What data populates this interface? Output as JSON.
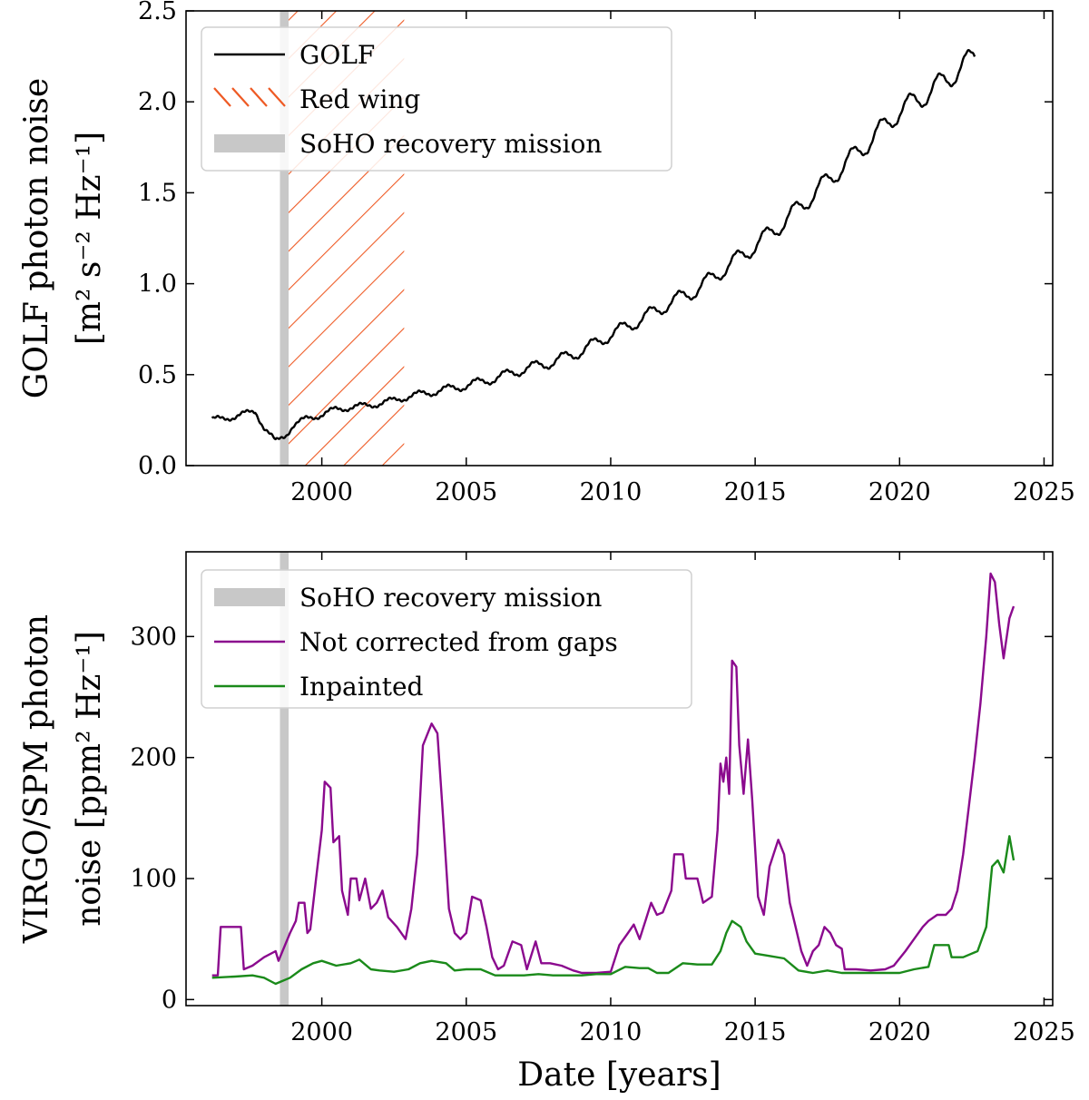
{
  "chart_data": [
    {
      "type": "line",
      "panel": "top",
      "title": "",
      "xlabel": "",
      "ylabel_line1": "GOLF photon noise",
      "ylabel_line2": "[m² s⁻² Hz⁻¹]",
      "xlim": [
        1995.3,
        2025.3
      ],
      "ylim": [
        0,
        2.5
      ],
      "xticks": [
        2000,
        2005,
        2010,
        2015,
        2020,
        2025
      ],
      "xtick_labels": [
        "2000",
        "2005",
        "2010",
        "2015",
        "2020",
        "2025"
      ],
      "yticks": [
        0,
        0.5,
        1.0,
        1.5,
        2.0,
        2.5
      ],
      "ytick_labels": [
        "0.0",
        "0.5",
        "1.0",
        "1.5",
        "2.0",
        "2.5"
      ],
      "shaded_regions": [
        {
          "name": "SoHO recovery mission",
          "x_start": 1998.55,
          "x_end": 1998.85,
          "color": "#c8c8c8",
          "style": "solid"
        },
        {
          "name": "Red wing",
          "x_start": 1998.85,
          "x_end": 2002.85,
          "color": "#ee5a24",
          "style": "hatch"
        }
      ],
      "series": [
        {
          "name": "GOLF",
          "color": "#000000",
          "trend_points": [
            [
              1996.2,
              0.25
            ],
            [
              1997.0,
              0.27
            ],
            [
              1997.7,
              0.3
            ],
            [
              1998.0,
              0.21
            ],
            [
              1998.4,
              0.13
            ],
            [
              1998.75,
              0.17
            ],
            [
              1999.0,
              0.22
            ],
            [
              1999.5,
              0.26
            ],
            [
              2000.0,
              0.28
            ],
            [
              2000.5,
              0.31
            ],
            [
              2001.0,
              0.32
            ],
            [
              2001.5,
              0.33
            ],
            [
              2002.0,
              0.34
            ],
            [
              2002.5,
              0.36
            ],
            [
              2003.0,
              0.38
            ],
            [
              2004.0,
              0.41
            ],
            [
              2005.0,
              0.44
            ],
            [
              2006.0,
              0.48
            ],
            [
              2007.0,
              0.53
            ],
            [
              2008.0,
              0.57
            ],
            [
              2009.0,
              0.63
            ],
            [
              2010.0,
              0.72
            ],
            [
              2011.0,
              0.8
            ],
            [
              2012.0,
              0.89
            ],
            [
              2013.0,
              0.97
            ],
            [
              2014.0,
              1.09
            ],
            [
              2015.0,
              1.21
            ],
            [
              2016.0,
              1.34
            ],
            [
              2017.0,
              1.49
            ],
            [
              2018.0,
              1.64
            ],
            [
              2019.0,
              1.79
            ],
            [
              2020.0,
              1.95
            ],
            [
              2021.0,
              2.05
            ],
            [
              2022.0,
              2.17
            ],
            [
              2022.6,
              2.25
            ]
          ],
          "seasonal_amplitude": 0.06,
          "x_end": 2022.6
        }
      ],
      "legend": {
        "location": "top-left",
        "entries": [
          {
            "label": "GOLF",
            "kind": "line",
            "color": "#000000"
          },
          {
            "label": "Red wing",
            "kind": "hatch",
            "color": "#ee5a24"
          },
          {
            "label": "SoHO recovery mission",
            "kind": "band",
            "color": "#c8c8c8"
          }
        ]
      }
    },
    {
      "type": "line",
      "panel": "bottom",
      "title": "",
      "xlabel": "Date [years]",
      "ylabel_line1": "VIRGO/SPM photon",
      "ylabel_line2": "noise [ppm² Hz⁻¹]",
      "xlim": [
        1995.3,
        2025.3
      ],
      "ylim": [
        -5,
        370
      ],
      "xticks": [
        2000,
        2005,
        2010,
        2015,
        2020,
        2025
      ],
      "xtick_labels": [
        "2000",
        "2005",
        "2010",
        "2015",
        "2020",
        "2025"
      ],
      "yticks": [
        0,
        100,
        200,
        300
      ],
      "ytick_labels": [
        "0",
        "100",
        "200",
        "300"
      ],
      "shaded_regions": [
        {
          "name": "SoHO recovery mission",
          "x_start": 1998.55,
          "x_end": 1998.85,
          "color": "#c8c8c8",
          "style": "solid"
        }
      ],
      "series": [
        {
          "name": "Not corrected from gaps",
          "color": "#8b0a8e",
          "points": [
            [
              1996.2,
              20
            ],
            [
              1996.4,
              20
            ],
            [
              1996.5,
              60
            ],
            [
              1997.2,
              60
            ],
            [
              1997.3,
              25
            ],
            [
              1997.6,
              28
            ],
            [
              1998.0,
              35
            ],
            [
              1998.4,
              40
            ],
            [
              1998.5,
              32
            ],
            [
              1998.9,
              55
            ],
            [
              1999.1,
              65
            ],
            [
              1999.2,
              80
            ],
            [
              1999.4,
              80
            ],
            [
              1999.5,
              55
            ],
            [
              1999.6,
              58
            ],
            [
              1999.8,
              100
            ],
            [
              2000.0,
              140
            ],
            [
              2000.1,
              180
            ],
            [
              2000.3,
              175
            ],
            [
              2000.4,
              130
            ],
            [
              2000.6,
              135
            ],
            [
              2000.7,
              90
            ],
            [
              2000.9,
              70
            ],
            [
              2001.0,
              100
            ],
            [
              2001.2,
              100
            ],
            [
              2001.3,
              82
            ],
            [
              2001.5,
              100
            ],
            [
              2001.7,
              75
            ],
            [
              2001.9,
              80
            ],
            [
              2002.1,
              90
            ],
            [
              2002.3,
              68
            ],
            [
              2002.6,
              60
            ],
            [
              2002.9,
              50
            ],
            [
              2003.1,
              75
            ],
            [
              2003.3,
              120
            ],
            [
              2003.5,
              210
            ],
            [
              2003.8,
              228
            ],
            [
              2004.0,
              220
            ],
            [
              2004.2,
              150
            ],
            [
              2004.4,
              75
            ],
            [
              2004.6,
              55
            ],
            [
              2004.8,
              50
            ],
            [
              2005.0,
              55
            ],
            [
              2005.2,
              85
            ],
            [
              2005.5,
              82
            ],
            [
              2005.7,
              60
            ],
            [
              2005.9,
              35
            ],
            [
              2006.1,
              25
            ],
            [
              2006.3,
              28
            ],
            [
              2006.6,
              48
            ],
            [
              2006.9,
              45
            ],
            [
              2007.1,
              25
            ],
            [
              2007.4,
              48
            ],
            [
              2007.6,
              30
            ],
            [
              2007.9,
              30
            ],
            [
              2008.3,
              28
            ],
            [
              2008.7,
              24
            ],
            [
              2009.0,
              22
            ],
            [
              2009.5,
              22
            ],
            [
              2010.0,
              23
            ],
            [
              2010.3,
              45
            ],
            [
              2010.6,
              55
            ],
            [
              2010.8,
              62
            ],
            [
              2011.0,
              50
            ],
            [
              2011.2,
              65
            ],
            [
              2011.4,
              80
            ],
            [
              2011.6,
              70
            ],
            [
              2011.8,
              72
            ],
            [
              2012.1,
              90
            ],
            [
              2012.2,
              120
            ],
            [
              2012.5,
              120
            ],
            [
              2012.6,
              100
            ],
            [
              2012.8,
              100
            ],
            [
              2013.0,
              100
            ],
            [
              2013.2,
              80
            ],
            [
              2013.5,
              85
            ],
            [
              2013.7,
              140
            ],
            [
              2013.8,
              195
            ],
            [
              2013.9,
              180
            ],
            [
              2014.0,
              200
            ],
            [
              2014.1,
              170
            ],
            [
              2014.2,
              280
            ],
            [
              2014.35,
              275
            ],
            [
              2014.45,
              210
            ],
            [
              2014.6,
              170
            ],
            [
              2014.75,
              215
            ],
            [
              2014.9,
              165
            ],
            [
              2015.1,
              85
            ],
            [
              2015.3,
              70
            ],
            [
              2015.5,
              110
            ],
            [
              2015.8,
              132
            ],
            [
              2016.0,
              120
            ],
            [
              2016.2,
              80
            ],
            [
              2016.4,
              60
            ],
            [
              2016.6,
              40
            ],
            [
              2016.8,
              28
            ],
            [
              2017.0,
              40
            ],
            [
              2017.2,
              45
            ],
            [
              2017.4,
              60
            ],
            [
              2017.6,
              55
            ],
            [
              2017.8,
              45
            ],
            [
              2018.0,
              42
            ],
            [
              2018.1,
              25
            ],
            [
              2018.5,
              25
            ],
            [
              2019.0,
              24
            ],
            [
              2019.5,
              25
            ],
            [
              2019.8,
              28
            ],
            [
              2020.2,
              40
            ],
            [
              2020.5,
              50
            ],
            [
              2020.8,
              60
            ],
            [
              2021.0,
              65
            ],
            [
              2021.3,
              70
            ],
            [
              2021.6,
              70
            ],
            [
              2021.8,
              75
            ],
            [
              2022.0,
              90
            ],
            [
              2022.2,
              120
            ],
            [
              2022.4,
              160
            ],
            [
              2022.6,
              200
            ],
            [
              2022.8,
              245
            ],
            [
              2023.0,
              300
            ],
            [
              2023.15,
              352
            ],
            [
              2023.3,
              345
            ],
            [
              2023.45,
              310
            ],
            [
              2023.6,
              282
            ],
            [
              2023.8,
              315
            ],
            [
              2023.95,
              325
            ]
          ]
        },
        {
          "name": "Inpainted",
          "color": "#1a8a1a",
          "points": [
            [
              1996.2,
              18
            ],
            [
              1997.0,
              19
            ],
            [
              1997.6,
              20
            ],
            [
              1998.0,
              18
            ],
            [
              1998.4,
              13
            ],
            [
              1998.9,
              18
            ],
            [
              1999.3,
              25
            ],
            [
              1999.7,
              30
            ],
            [
              2000.0,
              32
            ],
            [
              2000.5,
              28
            ],
            [
              2001.0,
              30
            ],
            [
              2001.3,
              33
            ],
            [
              2001.7,
              25
            ],
            [
              2002.0,
              24
            ],
            [
              2002.5,
              23
            ],
            [
              2003.0,
              25
            ],
            [
              2003.4,
              30
            ],
            [
              2003.8,
              32
            ],
            [
              2004.3,
              30
            ],
            [
              2004.6,
              24
            ],
            [
              2005.0,
              25
            ],
            [
              2005.5,
              25
            ],
            [
              2006.0,
              20
            ],
            [
              2006.5,
              20
            ],
            [
              2007.0,
              20
            ],
            [
              2007.5,
              21
            ],
            [
              2008.0,
              20
            ],
            [
              2008.5,
              20
            ],
            [
              2009.0,
              20
            ],
            [
              2009.5,
              21
            ],
            [
              2010.0,
              21
            ],
            [
              2010.5,
              27
            ],
            [
              2011.0,
              26
            ],
            [
              2011.3,
              26
            ],
            [
              2011.6,
              22
            ],
            [
              2012.0,
              22
            ],
            [
              2012.5,
              30
            ],
            [
              2013.0,
              29
            ],
            [
              2013.5,
              29
            ],
            [
              2013.8,
              40
            ],
            [
              2014.0,
              55
            ],
            [
              2014.2,
              65
            ],
            [
              2014.5,
              60
            ],
            [
              2014.7,
              48
            ],
            [
              2015.0,
              38
            ],
            [
              2015.5,
              36
            ],
            [
              2016.0,
              34
            ],
            [
              2016.5,
              24
            ],
            [
              2017.0,
              22
            ],
            [
              2017.5,
              24
            ],
            [
              2018.0,
              22
            ],
            [
              2018.5,
              22
            ],
            [
              2019.0,
              22
            ],
            [
              2019.5,
              22
            ],
            [
              2020.0,
              22
            ],
            [
              2020.5,
              25
            ],
            [
              2021.0,
              27
            ],
            [
              2021.2,
              45
            ],
            [
              2021.7,
              45
            ],
            [
              2021.8,
              35
            ],
            [
              2022.2,
              35
            ],
            [
              2022.7,
              40
            ],
            [
              2023.0,
              60
            ],
            [
              2023.2,
              110
            ],
            [
              2023.4,
              115
            ],
            [
              2023.6,
              105
            ],
            [
              2023.8,
              135
            ],
            [
              2023.95,
              115
            ]
          ]
        }
      ],
      "legend": {
        "location": "top-left",
        "entries": [
          {
            "label": "SoHO recovery mission",
            "kind": "band",
            "color": "#c8c8c8"
          },
          {
            "label": "Not corrected from gaps",
            "kind": "line",
            "color": "#8b0a8e"
          },
          {
            "label": "Inpainted",
            "kind": "line",
            "color": "#1a8a1a"
          }
        ]
      }
    }
  ]
}
